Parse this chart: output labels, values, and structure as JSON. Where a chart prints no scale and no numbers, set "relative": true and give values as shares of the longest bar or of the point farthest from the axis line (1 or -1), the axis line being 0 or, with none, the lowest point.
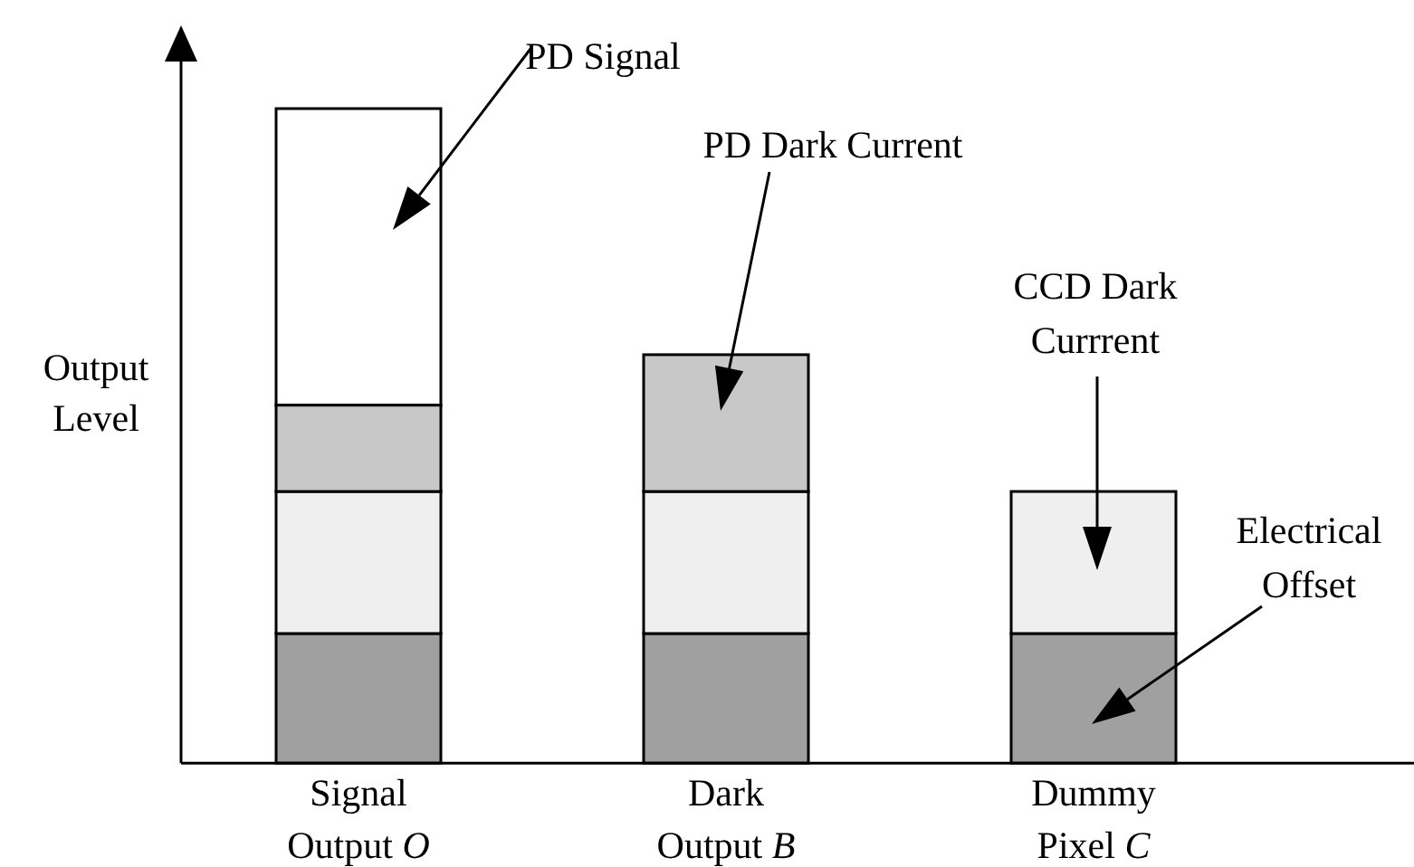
{
  "chart_data": {
    "type": "bar",
    "stacked": true,
    "relative": true,
    "ylabel": "Output Level",
    "categories": [
      "Signal Output O",
      "Dark Output B",
      "Dummy Pixel C"
    ],
    "series": [
      {
        "color": "#a0a0a0",
        "values": [
          0.198,
          0.198,
          0.198
        ]
      },
      {
        "color": "#efefef",
        "values": [
          0.217,
          0.217,
          0.217
        ]
      },
      {
        "color": "#c8c8c8",
        "values": [
          0.132,
          0.209,
          null
        ]
      },
      {
        "color": "#ffffff",
        "values": [
          0.453,
          null,
          null
        ]
      }
    ],
    "annotations": [
      "PD Signal",
      "PD Dark Current",
      "CCD Dark Currrent",
      "Electrical Offset"
    ]
  }
}
